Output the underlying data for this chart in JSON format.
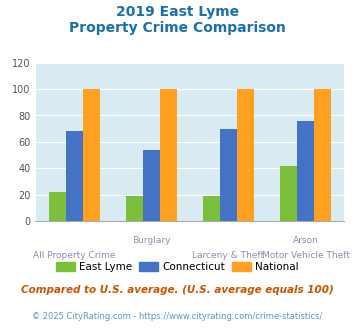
{
  "title_line1": "2019 East Lyme",
  "title_line2": "Property Crime Comparison",
  "title_color": "#1a6faf",
  "groups": [
    0,
    1,
    2,
    3
  ],
  "group_labels_top": [
    "",
    "Burglary",
    "",
    "Arson"
  ],
  "group_labels_bot": [
    "All Property Crime",
    "",
    "Larceny & Theft",
    "Motor Vehicle Theft"
  ],
  "east_lyme": [
    22,
    19,
    19,
    42
  ],
  "connecticut": [
    68,
    54,
    70,
    76
  ],
  "national": [
    100,
    100,
    100,
    100
  ],
  "east_lyme_color": "#7bbf3a",
  "connecticut_color": "#4472c4",
  "national_color": "#ffa020",
  "ylim": [
    0,
    120
  ],
  "yticks": [
    0,
    20,
    40,
    60,
    80,
    100,
    120
  ],
  "background_color": "#d8eaf2",
  "legend_labels": [
    "East Lyme",
    "Connecticut",
    "National"
  ],
  "footnote1": "Compared to U.S. average. (U.S. average equals 100)",
  "footnote2": "© 2025 CityRating.com - https://www.cityrating.com/crime-statistics/",
  "footnote1_color": "#cc5500",
  "footnote2_color": "#5599cc",
  "grid_color": "#ffffff"
}
